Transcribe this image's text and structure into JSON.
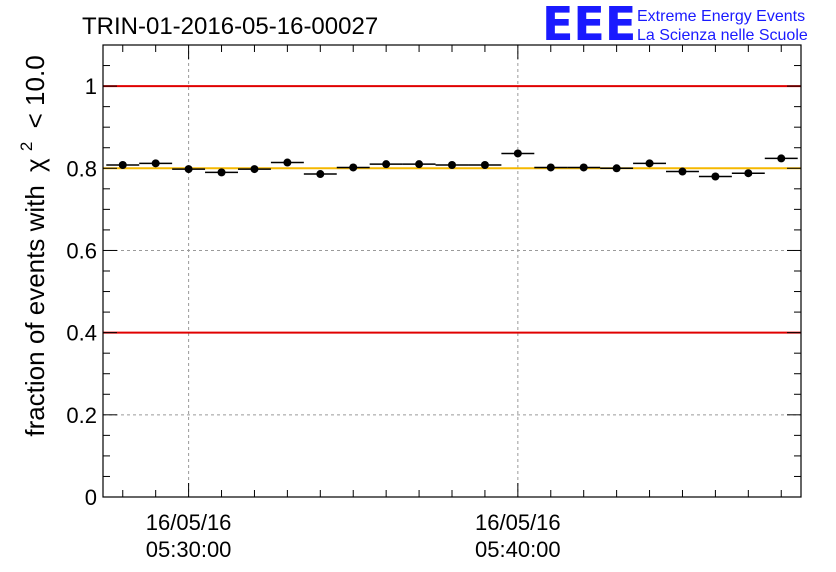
{
  "header": {
    "run_title": "TRIN-01-2016-05-16-00027"
  },
  "logo": {
    "letters": "EEE",
    "line1": "Extreme Energy Events",
    "line2": "La Scienza nelle Scuole",
    "color": "#1a1aff"
  },
  "chart_data": {
    "type": "scatter",
    "title": "TRIN-01-2016-05-16-00027",
    "ylabel_prefix": "fraction of events with",
    "ylabel_symbol": "χ",
    "ylabel_sup": "2",
    "ylabel_suffix": "< 10.0",
    "xlabel": "",
    "x_unit": "minutes after 05:30:00 on 16/05/16",
    "ylim": [
      0,
      1.1
    ],
    "xlim": [
      -2.6,
      18.6
    ],
    "y_ticks": [
      "0",
      "0.2",
      "0.4",
      "0.6",
      "0.8",
      "1"
    ],
    "y_tick_values": [
      0,
      0.2,
      0.4,
      0.6,
      0.8,
      1.0
    ],
    "x_tick_labels": [
      {
        "date": "16/05/16",
        "time": "05:30:00",
        "at": 0
      },
      {
        "date": "16/05/16",
        "time": "05:40:00",
        "at": 10
      }
    ],
    "grid": true,
    "reference_lines": [
      {
        "y": 1.0,
        "color": "#e00000"
      },
      {
        "y": 0.4,
        "color": "#e00000"
      },
      {
        "y": 0.8,
        "color": "#f5b800"
      }
    ],
    "bin_width": 1.0,
    "points": [
      {
        "x": -2.0,
        "y": 0.808
      },
      {
        "x": -1.0,
        "y": 0.812
      },
      {
        "x": 0.0,
        "y": 0.798
      },
      {
        "x": 1.0,
        "y": 0.79
      },
      {
        "x": 2.0,
        "y": 0.798
      },
      {
        "x": 3.0,
        "y": 0.814
      },
      {
        "x": 4.0,
        "y": 0.786
      },
      {
        "x": 5.0,
        "y": 0.802
      },
      {
        "x": 6.0,
        "y": 0.81
      },
      {
        "x": 7.0,
        "y": 0.81
      },
      {
        "x": 8.0,
        "y": 0.808
      },
      {
        "x": 9.0,
        "y": 0.808
      },
      {
        "x": 10.0,
        "y": 0.836
      },
      {
        "x": 11.0,
        "y": 0.802
      },
      {
        "x": 12.0,
        "y": 0.802
      },
      {
        "x": 13.0,
        "y": 0.8
      },
      {
        "x": 14.0,
        "y": 0.812
      },
      {
        "x": 15.0,
        "y": 0.792
      },
      {
        "x": 16.0,
        "y": 0.78
      },
      {
        "x": 17.0,
        "y": 0.788
      },
      {
        "x": 18.0,
        "y": 0.824
      }
    ],
    "colors": {
      "points": "#000000",
      "grid": "#9a9a9a"
    }
  }
}
